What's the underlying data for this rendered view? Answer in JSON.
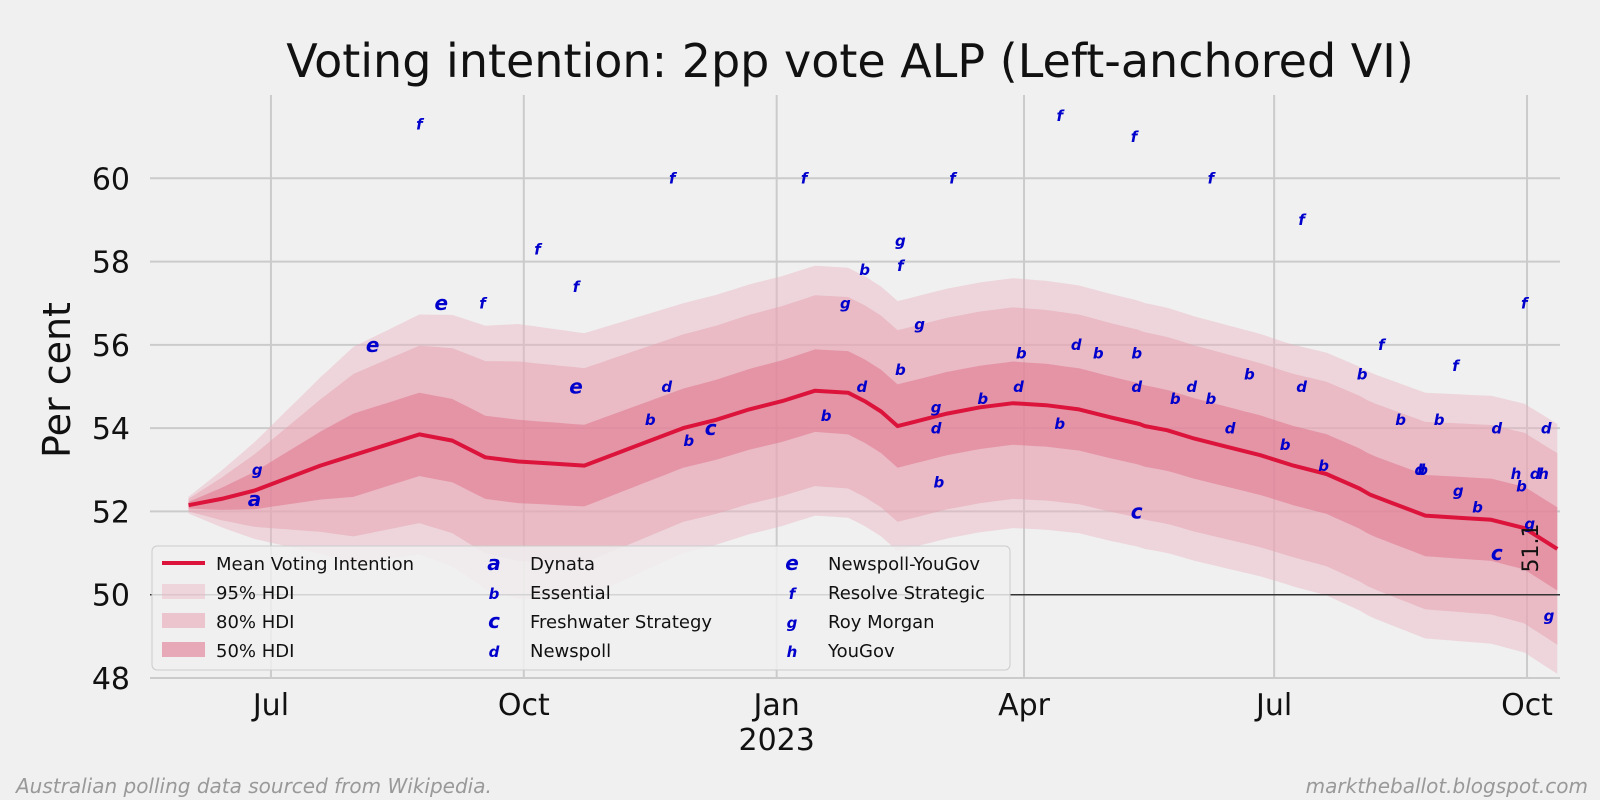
{
  "chart_data": {
    "type": "line",
    "title": "Voting intention: 2pp vote ALP (Left-anchored VI)",
    "xlabel": "",
    "ylabel": "Per cent",
    "ylim": [
      48,
      62
    ],
    "xlim_days": [
      -14,
      499
    ],
    "x_origin_date": "2022-06-01",
    "y_ticks": [
      48,
      50,
      52,
      54,
      56,
      58,
      60
    ],
    "x_ticks": [
      {
        "day": 30,
        "label": "Jul",
        "sublabel": ""
      },
      {
        "day": 122,
        "label": "Oct",
        "sublabel": ""
      },
      {
        "day": 214,
        "label": "Jan",
        "sublabel": "2023"
      },
      {
        "day": 304,
        "label": "Apr",
        "sublabel": ""
      },
      {
        "day": 395,
        "label": "Jul",
        "sublabel": ""
      },
      {
        "day": 487,
        "label": "Oct",
        "sublabel": ""
      }
    ],
    "reference_line": 50,
    "end_value_label": "51.1",
    "mean_series": {
      "name": "Mean Voting Intention",
      "color": "#dc143c",
      "x": [
        0,
        12,
        24,
        36,
        48,
        60,
        72,
        84,
        96,
        108,
        120,
        132,
        144,
        156,
        168,
        180,
        192,
        204,
        216,
        228,
        240,
        246,
        252,
        258,
        264,
        270,
        276,
        288,
        300,
        312,
        324,
        336,
        346,
        348,
        356,
        366,
        378,
        390,
        402,
        414,
        426,
        430,
        438,
        450,
        462,
        474,
        486,
        498
      ],
      "values": [
        52.15,
        52.3,
        52.5,
        52.8,
        53.1,
        53.35,
        53.6,
        53.85,
        53.7,
        53.3,
        53.2,
        53.15,
        53.1,
        53.4,
        53.7,
        54.0,
        54.2,
        54.45,
        54.65,
        54.9,
        54.85,
        54.65,
        54.4,
        54.05,
        54.15,
        54.25,
        54.35,
        54.5,
        54.6,
        54.55,
        54.45,
        54.25,
        54.1,
        54.05,
        53.95,
        53.75,
        53.55,
        53.35,
        53.1,
        52.9,
        52.55,
        52.4,
        52.2,
        51.9,
        51.85,
        51.8,
        51.6,
        51.1
      ]
    },
    "hdi_bands": [
      {
        "name": "95% HDI",
        "color": "#e8b4c0",
        "opacity": 0.45,
        "half_width": [
          0.2,
          2.6,
          3.3,
          3.0,
          3.0,
          3.0,
          2.9,
          3.0
        ]
      },
      {
        "name": "80% HDI",
        "color": "#e8a0b0",
        "opacity": 0.5,
        "half_width": [
          0.15,
          1.95,
          2.4,
          2.25,
          2.3,
          2.3,
          2.2,
          2.3
        ]
      },
      {
        "name": "50% HDI",
        "color": "#e06e88",
        "opacity": 0.5,
        "half_width": [
          0.08,
          1.0,
          1.0,
          0.95,
          1.0,
          1.0,
          0.95,
          1.0
        ]
      }
    ],
    "hdi_knots_days": [
      0,
      60,
      120,
      180,
      240,
      300,
      400,
      498
    ],
    "poll_points": [
      {
        "x": 24,
        "y": 52.3,
        "label": "a",
        "size": 20
      },
      {
        "x": 25,
        "y": 53.0,
        "label": "g",
        "size": 15
      },
      {
        "x": 67,
        "y": 56.0,
        "label": "e",
        "size": 20
      },
      {
        "x": 84,
        "y": 61.3,
        "label": "f",
        "size": 15
      },
      {
        "x": 92,
        "y": 57.0,
        "label": "e",
        "size": 20
      },
      {
        "x": 107,
        "y": 57.0,
        "label": "f",
        "size": 15
      },
      {
        "x": 127,
        "y": 58.3,
        "label": "f",
        "size": 15
      },
      {
        "x": 141,
        "y": 57.4,
        "label": "f",
        "size": 15
      },
      {
        "x": 141,
        "y": 55.0,
        "label": "e",
        "size": 20
      },
      {
        "x": 168,
        "y": 54.2,
        "label": "b",
        "size": 15
      },
      {
        "x": 174,
        "y": 55.0,
        "label": "d",
        "size": 15
      },
      {
        "x": 176,
        "y": 60.0,
        "label": "f",
        "size": 15
      },
      {
        "x": 182,
        "y": 53.7,
        "label": "b",
        "size": 15
      },
      {
        "x": 190,
        "y": 54.0,
        "label": "c",
        "size": 20
      },
      {
        "x": 224,
        "y": 60.0,
        "label": "f",
        "size": 15
      },
      {
        "x": 232,
        "y": 54.3,
        "label": "b",
        "size": 15
      },
      {
        "x": 239,
        "y": 57.0,
        "label": "g",
        "size": 15
      },
      {
        "x": 245,
        "y": 55.0,
        "label": "d",
        "size": 15
      },
      {
        "x": 246,
        "y": 57.8,
        "label": "b",
        "size": 15
      },
      {
        "x": 259,
        "y": 58.5,
        "label": "g",
        "size": 15
      },
      {
        "x": 259,
        "y": 57.9,
        "label": "f",
        "size": 15
      },
      {
        "x": 259,
        "y": 55.4,
        "label": "b",
        "size": 15
      },
      {
        "x": 266,
        "y": 56.5,
        "label": "g",
        "size": 15
      },
      {
        "x": 272,
        "y": 54.5,
        "label": "g",
        "size": 15
      },
      {
        "x": 272,
        "y": 54.0,
        "label": "d",
        "size": 15
      },
      {
        "x": 273,
        "y": 52.7,
        "label": "b",
        "size": 15
      },
      {
        "x": 278,
        "y": 60.0,
        "label": "f",
        "size": 15
      },
      {
        "x": 289,
        "y": 54.7,
        "label": "b",
        "size": 15
      },
      {
        "x": 302,
        "y": 55.0,
        "label": "d",
        "size": 15
      },
      {
        "x": 303,
        "y": 55.8,
        "label": "b",
        "size": 15
      },
      {
        "x": 317,
        "y": 61.5,
        "label": "f",
        "size": 15
      },
      {
        "x": 317,
        "y": 54.1,
        "label": "b",
        "size": 15
      },
      {
        "x": 323,
        "y": 56.0,
        "label": "d",
        "size": 15
      },
      {
        "x": 331,
        "y": 55.8,
        "label": "b",
        "size": 15
      },
      {
        "x": 344,
        "y": 61.0,
        "label": "f",
        "size": 15
      },
      {
        "x": 345,
        "y": 55.8,
        "label": "b",
        "size": 15
      },
      {
        "x": 345,
        "y": 55.0,
        "label": "d",
        "size": 15
      },
      {
        "x": 345,
        "y": 52.0,
        "label": "c",
        "size": 20
      },
      {
        "x": 359,
        "y": 54.7,
        "label": "b",
        "size": 15
      },
      {
        "x": 365,
        "y": 55.0,
        "label": "d",
        "size": 15
      },
      {
        "x": 372,
        "y": 54.7,
        "label": "b",
        "size": 15
      },
      {
        "x": 372,
        "y": 60.0,
        "label": "f",
        "size": 15
      },
      {
        "x": 379,
        "y": 54.0,
        "label": "d",
        "size": 15
      },
      {
        "x": 386,
        "y": 55.3,
        "label": "b",
        "size": 15
      },
      {
        "x": 399,
        "y": 53.6,
        "label": "b",
        "size": 15
      },
      {
        "x": 405,
        "y": 59.0,
        "label": "f",
        "size": 15
      },
      {
        "x": 405,
        "y": 55.0,
        "label": "d",
        "size": 15
      },
      {
        "x": 413,
        "y": 53.1,
        "label": "b",
        "size": 15
      },
      {
        "x": 427,
        "y": 55.3,
        "label": "b",
        "size": 15
      },
      {
        "x": 434,
        "y": 56.0,
        "label": "f",
        "size": 15
      },
      {
        "x": 441,
        "y": 54.2,
        "label": "b",
        "size": 15
      },
      {
        "x": 448,
        "y": 53.0,
        "label": "d",
        "size": 15
      },
      {
        "x": 449,
        "y": 53.0,
        "label": "b",
        "size": 15
      },
      {
        "x": 455,
        "y": 54.2,
        "label": "b",
        "size": 15
      },
      {
        "x": 461,
        "y": 55.5,
        "label": "f",
        "size": 15
      },
      {
        "x": 462,
        "y": 52.5,
        "label": "g",
        "size": 15
      },
      {
        "x": 469,
        "y": 52.1,
        "label": "b",
        "size": 15
      },
      {
        "x": 476,
        "y": 54.0,
        "label": "d",
        "size": 15
      },
      {
        "x": 476,
        "y": 51.0,
        "label": "c",
        "size": 20
      },
      {
        "x": 483,
        "y": 52.9,
        "label": "h",
        "size": 15
      },
      {
        "x": 485,
        "y": 52.6,
        "label": "b",
        "size": 15
      },
      {
        "x": 486,
        "y": 57.0,
        "label": "f",
        "size": 15
      },
      {
        "x": 488,
        "y": 51.7,
        "label": "g",
        "size": 15
      },
      {
        "x": 490,
        "y": 52.9,
        "label": "d",
        "size": 15
      },
      {
        "x": 493,
        "y": 52.9,
        "label": "h",
        "size": 15
      },
      {
        "x": 494,
        "y": 54.0,
        "label": "d",
        "size": 15
      },
      {
        "x": 495,
        "y": 49.5,
        "label": "g",
        "size": 15
      }
    ],
    "legend": {
      "placement": "lower-left",
      "entries": [
        {
          "kind": "line",
          "label": "Mean Voting Intention"
        },
        {
          "kind": "band",
          "label": "95% HDI"
        },
        {
          "kind": "band",
          "label": "80% HDI"
        },
        {
          "kind": "band",
          "label": "50% HDI"
        },
        {
          "kind": "letter",
          "letter": "a",
          "label": "Dynata"
        },
        {
          "kind": "letter",
          "letter": "b",
          "label": "Essential"
        },
        {
          "kind": "letter",
          "letter": "c",
          "label": "Freshwater Strategy"
        },
        {
          "kind": "letter",
          "letter": "d",
          "label": "Newspoll"
        },
        {
          "kind": "letter",
          "letter": "e",
          "label": "Newspoll-YouGov"
        },
        {
          "kind": "letter",
          "letter": "f",
          "label": "Resolve Strategic"
        },
        {
          "kind": "letter",
          "letter": "g",
          "label": "Roy Morgan"
        },
        {
          "kind": "letter",
          "letter": "h",
          "label": "YouGov"
        }
      ]
    }
  },
  "footer": {
    "left": "Australian polling data sourced from Wikipedia.",
    "right": "marktheballot.blogspot.com"
  }
}
